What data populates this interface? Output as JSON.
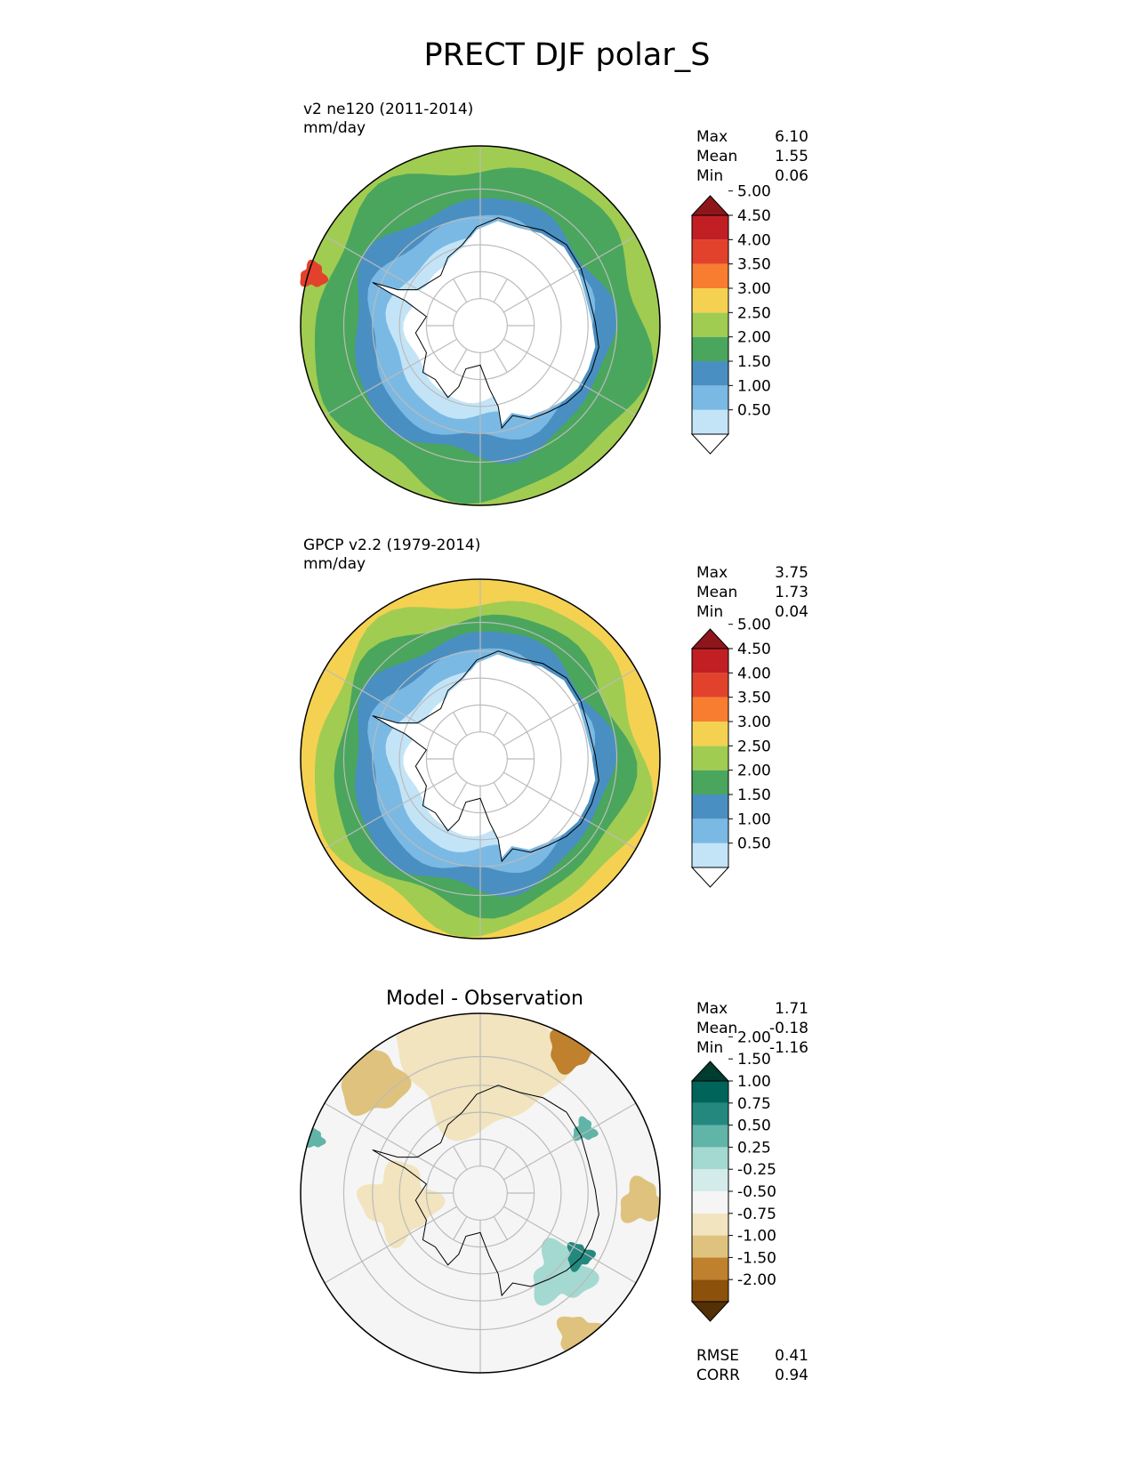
{
  "figure": {
    "title": "PRECT DJF polar_S"
  },
  "colors": {
    "precip_levels": [
      "#ffffff",
      "#c3e4f7",
      "#7ab9e4",
      "#4a8fc2",
      "#4aa65c",
      "#a1cc52",
      "#f5d152",
      "#f87d31",
      "#e2422b",
      "#c11f24",
      "#8e161b"
    ],
    "diff_levels": [
      "#543005",
      "#8c510a",
      "#bf812d",
      "#dfc27d",
      "#f1e4be",
      "#f5f5f5",
      "#d3ece9",
      "#a4d9d1",
      "#60b4a8",
      "#24887e",
      "#00645a",
      "#003c30"
    ],
    "land_outline": "#000000",
    "grid": "#bbbbbb"
  },
  "chart_data": [
    {
      "type": "heatmap",
      "projection": "south-polar-stereographic",
      "title": "v2 ne120 (2011-2014)",
      "units": "mm/day",
      "stats": {
        "max_label": "Max",
        "max": "6.10",
        "mean_label": "Mean",
        "mean": "1.55",
        "min_label": "Min",
        "min": "0.06"
      },
      "colorbar": {
        "levels": [
          "0.50",
          "1.00",
          "1.50",
          "2.00",
          "2.50",
          "3.00",
          "3.50",
          "4.00",
          "4.50",
          "5.00"
        ],
        "extend": "both"
      },
      "field_rings_mm_day": [
        0.3,
        0.8,
        1.3,
        1.8,
        2.3,
        2.4,
        2.6
      ]
    },
    {
      "type": "heatmap",
      "projection": "south-polar-stereographic",
      "title": "GPCP v2.2 (1979-2014)",
      "units": "mm/day",
      "stats": {
        "max_label": "Max",
        "max": "3.75",
        "mean_label": "Mean",
        "mean": "1.73",
        "min_label": "Min",
        "min": "0.04"
      },
      "colorbar": {
        "levels": [
          "0.50",
          "1.00",
          "1.50",
          "2.00",
          "2.50",
          "3.00",
          "3.50",
          "4.00",
          "4.50",
          "5.00"
        ],
        "extend": "both"
      },
      "field_rings_mm_day": [
        0.3,
        0.8,
        1.3,
        1.7,
        2.2,
        2.6,
        3.2
      ]
    },
    {
      "type": "heatmap",
      "projection": "south-polar-stereographic",
      "title": "Model - Observation",
      "stats": {
        "max_label": "Max",
        "max": "1.71",
        "mean_label": "Mean",
        "mean": "-0.18",
        "min_label": "Min",
        "min": "-1.16"
      },
      "colorbar": {
        "levels": [
          "-2.00",
          "-1.50",
          "-1.00",
          "-0.75",
          "-0.50",
          "-0.25",
          "0.25",
          "0.50",
          "0.75",
          "1.00",
          "1.50",
          "2.00"
        ],
        "extend": "both"
      },
      "metrics": {
        "rmse_label": "RMSE",
        "rmse": "0.41",
        "corr_label": "CORR",
        "corr": "0.94"
      }
    }
  ]
}
